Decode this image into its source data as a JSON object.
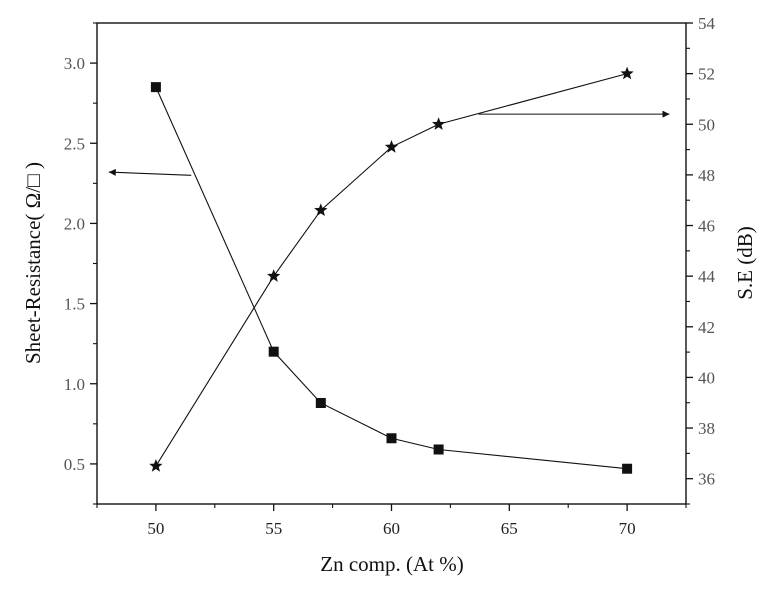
{
  "chart_data": {
    "type": "line",
    "x_label": "Zn comp. (At %)",
    "y_label_left": "Sheet-Resistance( Ω/□ )",
    "y_label_right": "S.E (dB)",
    "xlim": [
      47.5,
      72.5
    ],
    "ylim_left": [
      0.25,
      3.25
    ],
    "ylim_right": [
      35,
      54
    ],
    "x_ticks": [
      50,
      55,
      60,
      65,
      70
    ],
    "y_ticks_left": [
      0.5,
      1.0,
      1.5,
      2.0,
      2.5,
      3.0
    ],
    "y_tick_labels_left": [
      "0.5",
      "1.0",
      "1.5",
      "2.0",
      "2.5",
      "3.0"
    ],
    "y_ticks_right": [
      36,
      38,
      40,
      42,
      44,
      46,
      48,
      50,
      52,
      54
    ],
    "series": [
      {
        "axis": "left",
        "marker": "square",
        "x": [
          50,
          55,
          57,
          60,
          62,
          70
        ],
        "values": [
          2.85,
          1.2,
          0.88,
          0.66,
          0.59,
          0.47
        ]
      },
      {
        "axis": "right",
        "marker": "star",
        "x": [
          50,
          55,
          57,
          60,
          62,
          70
        ],
        "values": [
          36.5,
          44.0,
          46.6,
          49.1,
          50.0,
          52.0
        ]
      }
    ],
    "annotations": [
      {
        "type": "arrow",
        "points_to": "left-axis",
        "from": {
          "x": 51.5,
          "y": 2.3
        },
        "to": {
          "x": 48.0,
          "y": 2.32
        }
      },
      {
        "type": "arrow",
        "points_to": "right-axis",
        "from": {
          "x": 63.7,
          "y": 50.4
        },
        "to": {
          "x": 71.8,
          "y": 50.4
        }
      }
    ],
    "grid": false,
    "legend": "none"
  }
}
